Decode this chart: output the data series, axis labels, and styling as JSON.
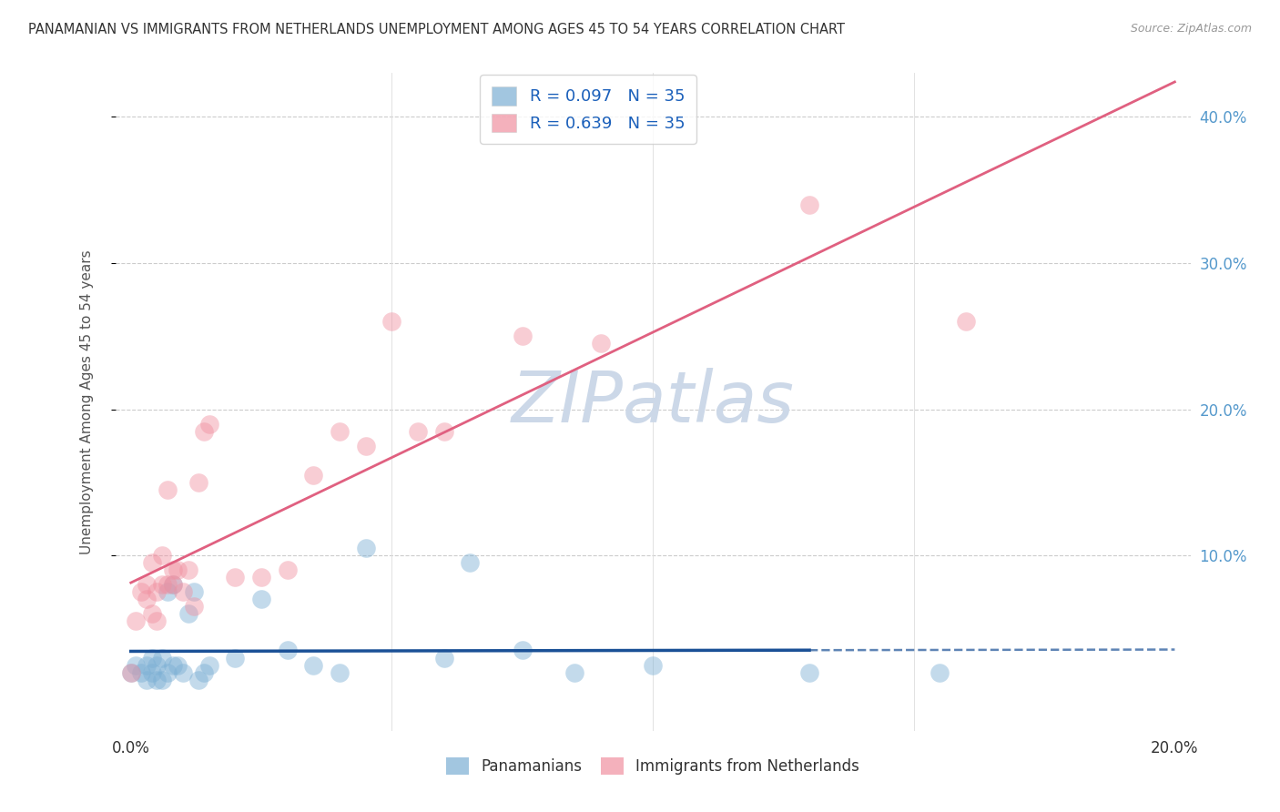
{
  "title": "PANAMANIAN VS IMMIGRANTS FROM NETHERLANDS UNEMPLOYMENT AMONG AGES 45 TO 54 YEARS CORRELATION CHART",
  "source": "Source: ZipAtlas.com",
  "ylabel": "Unemployment Among Ages 45 to 54 years",
  "xlim": [
    0.0,
    0.2
  ],
  "ylim": [
    0.0,
    0.42
  ],
  "yticks": [
    0.1,
    0.2,
    0.3,
    0.4
  ],
  "ytick_labels": [
    "10.0%",
    "20.0%",
    "30.0%",
    "40.0%"
  ],
  "xticks": [
    0.0,
    0.05,
    0.1,
    0.15,
    0.2
  ],
  "xtick_labels": [
    "0.0%",
    "",
    "",
    "",
    "20.0%"
  ],
  "pan_R": 0.097,
  "pan_N": 35,
  "neth_R": 0.639,
  "neth_N": 35,
  "pan_color": "#7bafd4",
  "neth_color": "#f090a0",
  "pan_line_color": "#1a5096",
  "neth_line_color": "#e06080",
  "background_color": "#ffffff",
  "watermark_color": "#ccd8e8",
  "pan_x": [
    0.0,
    0.001,
    0.002,
    0.003,
    0.003,
    0.004,
    0.004,
    0.005,
    0.005,
    0.006,
    0.006,
    0.007,
    0.007,
    0.008,
    0.008,
    0.009,
    0.01,
    0.011,
    0.012,
    0.013,
    0.014,
    0.015,
    0.02,
    0.025,
    0.03,
    0.035,
    0.04,
    0.045,
    0.06,
    0.065,
    0.075,
    0.085,
    0.1,
    0.13,
    0.155
  ],
  "pan_y": [
    0.02,
    0.025,
    0.02,
    0.015,
    0.025,
    0.02,
    0.03,
    0.015,
    0.025,
    0.015,
    0.03,
    0.02,
    0.075,
    0.025,
    0.08,
    0.025,
    0.02,
    0.06,
    0.075,
    0.015,
    0.02,
    0.025,
    0.03,
    0.07,
    0.035,
    0.025,
    0.02,
    0.105,
    0.03,
    0.095,
    0.035,
    0.02,
    0.025,
    0.02,
    0.02
  ],
  "neth_x": [
    0.0,
    0.001,
    0.002,
    0.003,
    0.003,
    0.004,
    0.004,
    0.005,
    0.005,
    0.006,
    0.006,
    0.007,
    0.007,
    0.008,
    0.008,
    0.009,
    0.01,
    0.011,
    0.012,
    0.013,
    0.014,
    0.015,
    0.02,
    0.025,
    0.03,
    0.035,
    0.04,
    0.045,
    0.05,
    0.055,
    0.06,
    0.075,
    0.09,
    0.13,
    0.16
  ],
  "neth_y": [
    0.02,
    0.055,
    0.075,
    0.07,
    0.08,
    0.06,
    0.095,
    0.055,
    0.075,
    0.08,
    0.1,
    0.08,
    0.145,
    0.08,
    0.09,
    0.09,
    0.075,
    0.09,
    0.065,
    0.15,
    0.185,
    0.19,
    0.085,
    0.085,
    0.09,
    0.155,
    0.185,
    0.175,
    0.26,
    0.185,
    0.185,
    0.25,
    0.245,
    0.34,
    0.26
  ],
  "neth_line_intercept": 0.0,
  "neth_line_slope": 2.0,
  "pan_line_intercept": 0.018,
  "pan_line_slope": 0.04
}
